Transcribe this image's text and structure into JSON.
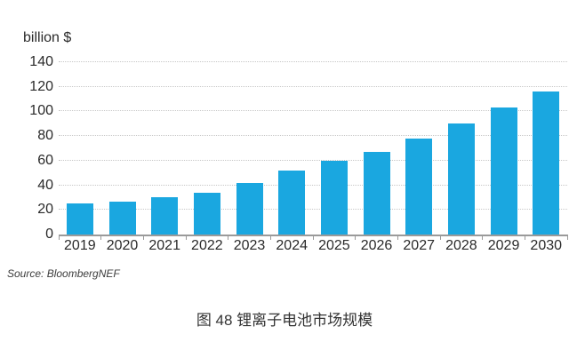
{
  "chart_data": {
    "type": "bar",
    "title": "",
    "unit_label": "billion $",
    "categories": [
      "2019",
      "2020",
      "2021",
      "2022",
      "2023",
      "2024",
      "2025",
      "2026",
      "2027",
      "2028",
      "2029",
      "2030"
    ],
    "values": [
      25,
      27,
      30,
      34,
      42,
      52,
      60,
      67,
      78,
      90,
      103,
      116
    ],
    "ylabel": "billion $",
    "xlabel": "",
    "ylim": [
      0,
      140
    ],
    "yticks": [
      0,
      20,
      40,
      60,
      80,
      100,
      120,
      140
    ],
    "grid": "horizontal-dotted",
    "legend": "none",
    "bar_color": "#1aa7e0"
  },
  "source": {
    "label": "Source: BloombergNEF"
  },
  "caption": {
    "text": "图 48  锂离子电池市场规模"
  },
  "colors": {
    "bar": "#1aa7e0",
    "text": "#2a2a2a",
    "grid": "#c7c7c7",
    "axis": "#9a9a9a",
    "background": "#ffffff"
  }
}
